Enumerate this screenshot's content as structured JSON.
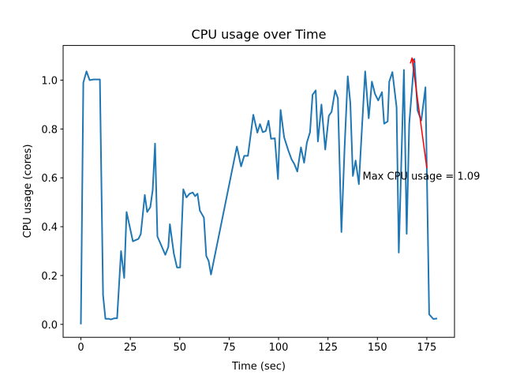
{
  "chart_data": {
    "type": "line",
    "title": "CPU usage over Time",
    "xlabel": "Time (sec)",
    "ylabel": "CPU usage (cores)",
    "xlim": [
      -9,
      189
    ],
    "ylim": [
      -0.053,
      1.142
    ],
    "xticks": [
      0,
      25,
      50,
      75,
      100,
      125,
      150,
      175
    ],
    "xtick_labels": [
      "0",
      "25",
      "50",
      "75",
      "100",
      "125",
      "150",
      "175"
    ],
    "yticks": [
      0.0,
      0.2,
      0.4,
      0.6,
      0.8,
      1.0
    ],
    "ytick_labels": [
      "0.0",
      "0.2",
      "0.4",
      "0.6",
      "0.8",
      "1.0"
    ],
    "grid": false,
    "series": [
      {
        "name": "CPU usage",
        "color": "#1f77b4",
        "x": [
          0,
          1.2,
          2.8,
          4.4,
          6.4,
          9.6,
          11.2,
          12.4,
          14,
          15.1,
          17,
          18.3,
          20.3,
          21.9,
          23.1,
          26.3,
          29.1,
          30.3,
          32.3,
          33.5,
          35.1,
          36.3,
          37.5,
          38.7,
          42.7,
          44.2,
          45,
          47,
          48.6,
          50.2,
          51.8,
          53.4,
          55,
          56.6,
          57.8,
          59,
          60.2,
          62.2,
          63.4,
          64.6,
          65.8,
          78.9,
          81,
          82.6,
          84.5,
          87.2,
          89.3,
          90.6,
          92,
          93.5,
          94.9,
          96.2,
          98.1,
          99.7,
          101,
          102.8,
          105,
          106.6,
          107.9,
          109.5,
          111.3,
          112.9,
          114.3,
          115.9,
          117.2,
          118.8,
          119.9,
          121.7,
          123.6,
          125.4,
          126.8,
          128.6,
          130,
          131.8,
          133.4,
          135,
          136.3,
          137.6,
          139,
          140.6,
          142.2,
          143.8,
          145.6,
          147.2,
          148.8,
          150.4,
          152.3,
          153.4,
          155.2,
          156,
          157.6,
          159.7,
          160.8,
          163.4,
          164.8,
          166.1,
          168.7,
          170.3,
          172.2,
          174.3,
          176.2,
          178.3,
          180.2
        ],
        "y": [
          0,
          0.99,
          1.036,
          1.0,
          1.003,
          1.003,
          0.12,
          0.023,
          0.023,
          0.02,
          0.025,
          0.025,
          0.3,
          0.19,
          0.46,
          0.34,
          0.35,
          0.37,
          0.53,
          0.46,
          0.48,
          0.55,
          0.74,
          0.36,
          0.285,
          0.317,
          0.41,
          0.29,
          0.233,
          0.233,
          0.553,
          0.52,
          0.535,
          0.54,
          0.525,
          0.535,
          0.466,
          0.437,
          0.28,
          0.26,
          0.204,
          0.728,
          0.647,
          0.69,
          0.69,
          0.858,
          0.785,
          0.82,
          0.787,
          0.792,
          0.834,
          0.76,
          0.762,
          0.595,
          0.878,
          0.766,
          0.71,
          0.675,
          0.658,
          0.626,
          0.725,
          0.662,
          0.744,
          0.787,
          0.94,
          0.958,
          0.749,
          0.9,
          0.716,
          0.854,
          0.87,
          0.958,
          0.926,
          0.378,
          0.723,
          1.016,
          0.906,
          0.608,
          0.671,
          0.574,
          0.809,
          1.036,
          0.844,
          0.994,
          0.943,
          0.917,
          0.951,
          0.822,
          0.831,
          0.994,
          1.033,
          0.889,
          0.294,
          1.042,
          0.371,
          0.82,
          1.087,
          0.876,
          0.835,
          0.971,
          0.041,
          0.022,
          0.024
        ]
      }
    ],
    "annotations": [
      {
        "text": "Max CPU usage = 1.09",
        "color": "#ff0000",
        "xy": [
          167.5,
          1.09
        ],
        "xytext": [
          142.5,
          0.59
        ],
        "arrow_tail": [
          175,
          0.64
        ]
      }
    ]
  }
}
